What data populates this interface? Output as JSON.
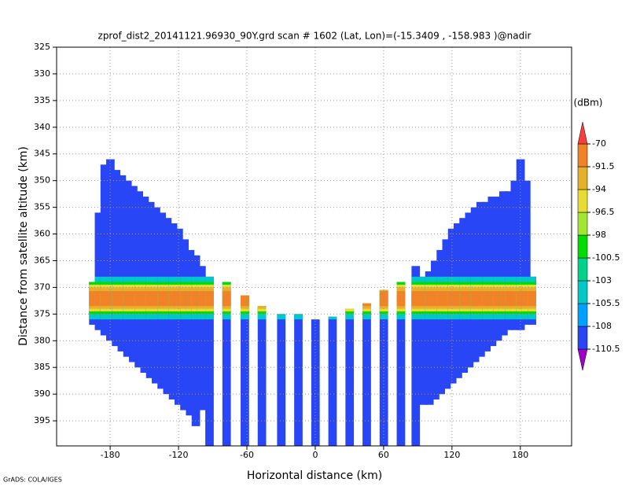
{
  "chart_data": {
    "type": "cross-section",
    "title": "zprof_dist2_20141121.96930_90Y.grd   scan # 1602   (Lat, Lon)=(-15.3409 , -158.983 )@nadir",
    "x_label": "Horizontal distance (km)",
    "y_label": "Distance from satellite altitude (km)",
    "colorbar_label": "(dBm)",
    "credit": "GrADS: COLA/IGES",
    "xlim": [
      -227,
      225
    ],
    "ylim": [
      325,
      399.7
    ],
    "y_inverted": true,
    "xticks": [
      -180,
      -120,
      -60,
      0,
      60,
      120,
      180
    ],
    "yticks": [
      325,
      330,
      335,
      340,
      345,
      350,
      355,
      360,
      365,
      370,
      375,
      380,
      385,
      390,
      395
    ],
    "grid": true,
    "levels": [
      -110.5,
      -108,
      -105.5,
      -103,
      -100.5,
      -98,
      -96.5,
      -94,
      -91.5,
      -70
    ],
    "colors": [
      "#a000c8",
      "#2846f5",
      "#00a0ff",
      "#00c8c8",
      "#00d28c",
      "#00dc00",
      "#a0e632",
      "#e6dc32",
      "#e6af2d",
      "#f08228",
      "#f0197d",
      "#fa3c3c"
    ],
    "swath_value": -109,
    "columns": {
      "x": [
        -195,
        -190,
        -185,
        -180,
        -175,
        -170,
        -165,
        -160,
        -155,
        -150,
        -145,
        -140,
        -135,
        -130,
        -125,
        -120,
        -115,
        -110,
        -105,
        -100,
        -93,
        -78,
        -62,
        -47,
        -30,
        -15,
        0,
        15,
        30,
        45,
        60,
        75,
        88,
        95,
        100,
        105,
        110,
        115,
        120,
        125,
        130,
        135,
        140,
        145,
        150,
        155,
        160,
        165,
        170,
        175,
        180,
        185,
        190
      ],
      "top": [
        369,
        356,
        347,
        346,
        348,
        349,
        350,
        351,
        352,
        353,
        354,
        355,
        356,
        357,
        358,
        359,
        361,
        363,
        364,
        366,
        368,
        369,
        371.5,
        373.5,
        375,
        375,
        376,
        375.5,
        374,
        373,
        370.5,
        369,
        366,
        368,
        367,
        365,
        363,
        361,
        359,
        358,
        357,
        356,
        355,
        354,
        354,
        353,
        353,
        352,
        352,
        350,
        346,
        350,
        368
      ],
      "bottom": [
        377,
        378,
        379,
        380,
        381,
        382,
        383,
        384,
        385,
        386,
        387,
        388,
        389,
        390,
        391,
        392,
        393,
        394,
        396,
        393,
        400,
        400,
        400,
        400,
        400,
        400,
        400,
        400,
        400,
        400,
        400,
        400,
        400,
        392,
        392,
        391,
        390,
        389,
        388,
        387,
        386,
        385,
        384,
        383,
        382,
        381,
        380,
        379,
        378,
        378,
        378,
        377,
        377
      ]
    },
    "layers": {
      "value": [
        -105.5,
        -100.5,
        -96.5,
        -94,
        -91.5
      ],
      "top": [
        368,
        369,
        369.5,
        370,
        370.7
      ],
      "bottom": [
        376,
        375,
        374.5,
        374,
        373.5
      ]
    }
  }
}
